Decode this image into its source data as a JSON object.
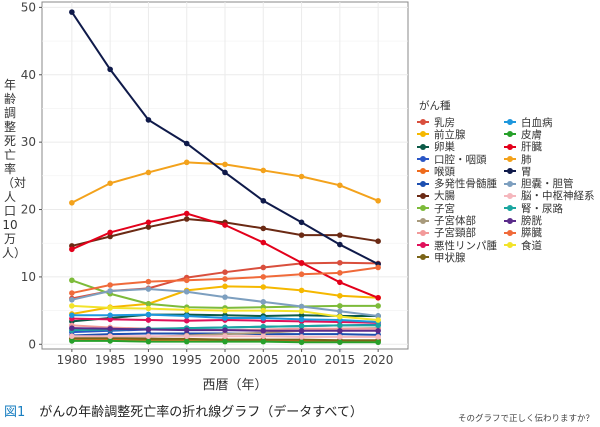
{
  "caption": {
    "figure_label": "図1",
    "title": "がんの年齢調整死亡率の折れ線グラフ（データすべて）",
    "subtext": "そのグラフで正しく伝わりますか？"
  },
  "chart_data": {
    "type": "line",
    "title": "",
    "xlabel": "西暦（年）",
    "ylabel": "年齢調整死亡率（対人口10万人）",
    "x": [
      1980,
      1985,
      1990,
      1995,
      2000,
      2005,
      2010,
      2015,
      2020
    ],
    "xticks": [
      "1980",
      "1985",
      "1990",
      "1995",
      "2000",
      "2005",
      "2010",
      "2015",
      "2020"
    ],
    "yticks": [
      "0",
      "10",
      "20",
      "30",
      "40",
      "50"
    ],
    "ylim": [
      -0.7,
      50.8
    ],
    "grid": true,
    "legend_title": "がん種",
    "legend_position": "right",
    "series": [
      {
        "name": "乳房",
        "color": "#d94f3d",
        "values": [
          6.8,
          7.9,
          8.3,
          9.9,
          10.7,
          11.4,
          12.0,
          12.1,
          12.0
        ]
      },
      {
        "name": "前立腺",
        "color": "#f5b800",
        "values": [
          4.5,
          5.5,
          6.0,
          8.0,
          8.6,
          8.5,
          8.0,
          7.2,
          6.9
        ]
      },
      {
        "name": "卵巣",
        "color": "#0b5a47",
        "values": [
          3.4,
          3.9,
          4.4,
          4.4,
          4.3,
          4.2,
          4.3,
          4.2,
          4.2
        ]
      },
      {
        "name": "口腔・咽頭",
        "color": "#2a56c6",
        "values": [
          1.8,
          2.0,
          2.2,
          2.4,
          2.5,
          2.6,
          2.7,
          2.8,
          2.9
        ]
      },
      {
        "name": "喉頭",
        "color": "#ef6b1c",
        "values": [
          0.8,
          0.7,
          0.6,
          0.6,
          0.5,
          0.5,
          0.5,
          0.5,
          0.5
        ]
      },
      {
        "name": "多発性骨髄腫",
        "color": "#1d4fb0",
        "values": [
          1.3,
          1.5,
          1.6,
          1.6,
          1.6,
          1.5,
          1.5,
          1.5,
          1.4
        ]
      },
      {
        "name": "大腸",
        "color": "#6b2a14",
        "values": [
          14.6,
          16.0,
          17.4,
          18.6,
          18.1,
          17.2,
          16.2,
          16.2,
          15.3
        ]
      },
      {
        "name": "子宮",
        "color": "#7dbb3a",
        "values": [
          9.5,
          7.5,
          6.0,
          5.5,
          5.4,
          5.5,
          5.6,
          5.7,
          5.7
        ]
      },
      {
        "name": "子宮体部",
        "color": "#a89a7c",
        "values": [
          0.9,
          1.0,
          1.1,
          1.3,
          1.5,
          1.7,
          2.0,
          2.3,
          2.4
        ]
      },
      {
        "name": "子宮頸部",
        "color": "#f29a9a",
        "values": [
          2.8,
          2.5,
          2.3,
          2.2,
          2.1,
          2.2,
          2.3,
          2.3,
          2.3
        ]
      },
      {
        "name": "悪性リンパ腫",
        "color": "#e0105a",
        "values": [
          3.8,
          3.7,
          3.6,
          3.5,
          3.6,
          3.5,
          3.4,
          3.3,
          3.2
        ]
      },
      {
        "name": "甲状腺",
        "color": "#7a6418",
        "values": [
          0.9,
          0.9,
          0.8,
          0.8,
          0.7,
          0.7,
          0.7,
          0.6,
          0.6
        ]
      },
      {
        "name": "白血病",
        "color": "#1e97dd",
        "values": [
          4.3,
          4.3,
          4.4,
          4.2,
          3.9,
          3.9,
          3.7,
          3.6,
          3.3
        ]
      },
      {
        "name": "皮膚",
        "color": "#27a02a",
        "values": [
          0.5,
          0.5,
          0.4,
          0.4,
          0.4,
          0.4,
          0.3,
          0.3,
          0.3
        ]
      },
      {
        "name": "肝臓",
        "color": "#e3001b",
        "values": [
          14.1,
          16.6,
          18.1,
          19.4,
          17.7,
          15.1,
          12.1,
          9.2,
          6.9
        ]
      },
      {
        "name": "肺",
        "color": "#f3a21c",
        "values": [
          21.0,
          23.9,
          25.5,
          27.0,
          26.7,
          25.8,
          24.9,
          23.6,
          21.3
        ]
      },
      {
        "name": "胃",
        "color": "#0f1a4a",
        "values": [
          49.3,
          40.8,
          33.3,
          29.8,
          25.5,
          21.3,
          18.1,
          14.8,
          11.9
        ]
      },
      {
        "name": "胆嚢・胆管",
        "color": "#7d9fbf",
        "values": [
          6.6,
          7.9,
          8.2,
          7.8,
          7.0,
          6.3,
          5.6,
          4.9,
          4.2
        ]
      },
      {
        "name": "脳・中枢神経系",
        "color": "#f5b7bd",
        "values": [
          1.2,
          1.2,
          1.2,
          1.2,
          1.2,
          1.2,
          1.1,
          1.1,
          1.1
        ]
      },
      {
        "name": "腎・尿路",
        "color": "#1aa6a0",
        "values": [
          2.1,
          2.2,
          2.3,
          2.4,
          2.5,
          2.6,
          2.7,
          2.8,
          2.8
        ]
      },
      {
        "name": "膀胱",
        "color": "#5a2b8a",
        "values": [
          2.4,
          2.3,
          2.2,
          2.1,
          2.1,
          2.0,
          2.0,
          2.0,
          2.0
        ]
      },
      {
        "name": "膵臓",
        "color": "#f06a3a",
        "values": [
          7.6,
          8.8,
          9.3,
          9.5,
          9.7,
          10.0,
          10.4,
          10.6,
          11.4
        ]
      },
      {
        "name": "食道",
        "color": "#f2e32a",
        "values": [
          5.7,
          5.4,
          5.3,
          5.1,
          5.0,
          5.0,
          4.9,
          4.1,
          3.6
        ]
      }
    ]
  }
}
